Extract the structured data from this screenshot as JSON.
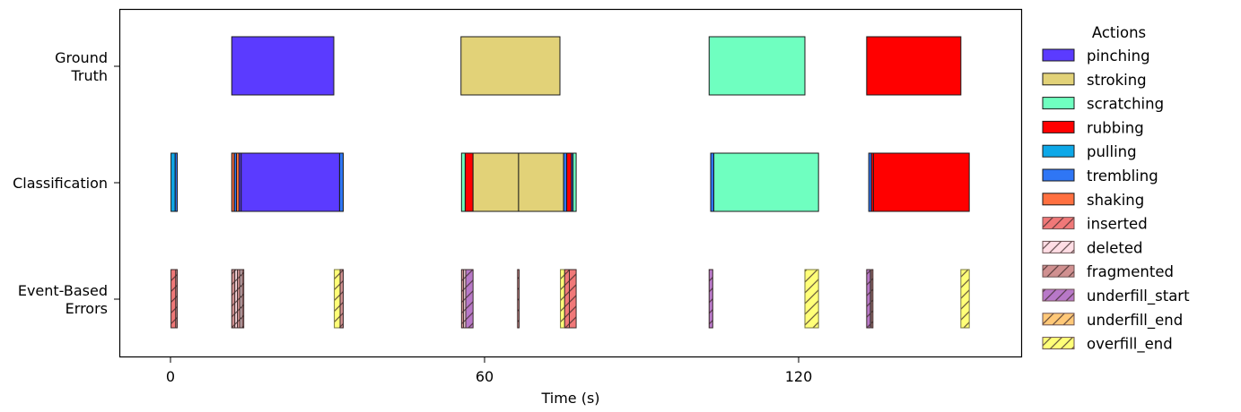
{
  "chart_data": {
    "type": "timeline",
    "title": "",
    "xlabel": "Time (s)",
    "ylabel": "",
    "xlim": [
      -9.8,
      162.6
    ],
    "xticks": [
      0,
      60,
      120
    ],
    "xtick_labels": [
      "0",
      "60",
      "120"
    ],
    "grid": false,
    "legend_position": "outside right",
    "rows": [
      {
        "label_lines": [
          "Ground",
          "Truth"
        ],
        "label": "Ground Truth"
      },
      {
        "label_lines": [
          "Classification"
        ],
        "label": "Classification"
      },
      {
        "label_lines": [
          "Event-Based",
          "Errors"
        ],
        "label": "Event-Based Errors"
      }
    ],
    "legend": {
      "title": "Actions",
      "items": [
        {
          "label": "pinching",
          "color": "#5b3bff",
          "hatch": false
        },
        {
          "label": "stroking",
          "color": "#e2d278",
          "hatch": false
        },
        {
          "label": "scratching",
          "color": "#6fffc0",
          "hatch": false
        },
        {
          "label": "rubbing",
          "color": "#ff0000",
          "hatch": false
        },
        {
          "label": "pulling",
          "color": "#0da8e8",
          "hatch": false
        },
        {
          "label": "trembling",
          "color": "#2f76f5",
          "hatch": false
        },
        {
          "label": "shaking",
          "color": "#ff7040",
          "hatch": false
        },
        {
          "label": "inserted",
          "color": "#f07878",
          "hatch": true
        },
        {
          "label": "deleted",
          "color": "#ffdde4",
          "hatch": true
        },
        {
          "label": "fragmented",
          "color": "#d09090",
          "hatch": true
        },
        {
          "label": "underfill_start",
          "color": "#b878c8",
          "hatch": true
        },
        {
          "label": "underfill_end",
          "color": "#ffc878",
          "hatch": true
        },
        {
          "label": "overfill_end",
          "color": "#ffff78",
          "hatch": true
        }
      ]
    },
    "series": [
      {
        "name": "Ground Truth",
        "segments": [
          {
            "start": 11.7,
            "end": 31.2,
            "label": "pinching"
          },
          {
            "start": 55.5,
            "end": 74.4,
            "label": "stroking"
          },
          {
            "start": 102.9,
            "end": 121.2,
            "label": "scratching"
          },
          {
            "start": 133.0,
            "end": 151.0,
            "label": "rubbing"
          }
        ]
      },
      {
        "name": "Classification",
        "segments": [
          {
            "start": 0.1,
            "end": 0.9,
            "label": "pulling"
          },
          {
            "start": 0.9,
            "end": 1.3,
            "label": "trembling"
          },
          {
            "start": 11.7,
            "end": 12.2,
            "label": "shaking"
          },
          {
            "start": 12.2,
            "end": 12.6,
            "label": "trembling"
          },
          {
            "start": 12.6,
            "end": 13.1,
            "label": "shaking"
          },
          {
            "start": 13.1,
            "end": 13.5,
            "label": "pinching"
          },
          {
            "start": 13.5,
            "end": 32.3,
            "label": "pinching"
          },
          {
            "start": 32.3,
            "end": 33.0,
            "label": "trembling"
          },
          {
            "start": 55.6,
            "end": 56.3,
            "label": "scratching"
          },
          {
            "start": 56.3,
            "end": 57.8,
            "label": "rubbing"
          },
          {
            "start": 57.8,
            "end": 66.5,
            "label": "stroking"
          },
          {
            "start": 66.5,
            "end": 75.1,
            "label": "stroking"
          },
          {
            "start": 75.1,
            "end": 75.7,
            "label": "trembling"
          },
          {
            "start": 75.7,
            "end": 76.6,
            "label": "rubbing"
          },
          {
            "start": 76.6,
            "end": 76.9,
            "label": "trembling"
          },
          {
            "start": 76.9,
            "end": 77.5,
            "label": "scratching"
          },
          {
            "start": 103.2,
            "end": 103.8,
            "label": "trembling"
          },
          {
            "start": 103.8,
            "end": 123.8,
            "label": "scratching"
          },
          {
            "start": 133.4,
            "end": 133.9,
            "label": "trembling"
          },
          {
            "start": 133.9,
            "end": 134.3,
            "label": "rubbing"
          },
          {
            "start": 134.3,
            "end": 152.6,
            "label": "rubbing"
          }
        ]
      },
      {
        "name": "Event-Based Errors",
        "segments": [
          {
            "start": 0.1,
            "end": 1.0,
            "label": "inserted"
          },
          {
            "start": 1.0,
            "end": 1.3,
            "label": "fragmented"
          },
          {
            "start": 11.7,
            "end": 12.3,
            "label": "fragmented"
          },
          {
            "start": 12.3,
            "end": 12.8,
            "label": "deleted"
          },
          {
            "start": 12.8,
            "end": 13.3,
            "label": "fragmented"
          },
          {
            "start": 13.3,
            "end": 13.7,
            "label": "deleted"
          },
          {
            "start": 13.7,
            "end": 14.0,
            "label": "fragmented"
          },
          {
            "start": 31.3,
            "end": 32.4,
            "label": "overfill_end"
          },
          {
            "start": 32.4,
            "end": 33.0,
            "label": "fragmented"
          },
          {
            "start": 55.6,
            "end": 56.0,
            "label": "fragmented"
          },
          {
            "start": 56.0,
            "end": 56.4,
            "label": "deleted"
          },
          {
            "start": 56.4,
            "end": 57.8,
            "label": "underfill_start"
          },
          {
            "start": 66.3,
            "end": 66.6,
            "label": "fragmented"
          },
          {
            "start": 74.5,
            "end": 75.3,
            "label": "overfill_end"
          },
          {
            "start": 75.3,
            "end": 76.2,
            "label": "inserted"
          },
          {
            "start": 76.2,
            "end": 77.5,
            "label": "inserted"
          },
          {
            "start": 102.9,
            "end": 103.6,
            "label": "underfill_start"
          },
          {
            "start": 121.2,
            "end": 123.8,
            "label": "overfill_end"
          },
          {
            "start": 133.0,
            "end": 133.7,
            "label": "underfill_start"
          },
          {
            "start": 133.9,
            "end": 134.2,
            "label": "fragmented"
          },
          {
            "start": 151.0,
            "end": 152.6,
            "label": "overfill_end"
          }
        ]
      }
    ]
  }
}
